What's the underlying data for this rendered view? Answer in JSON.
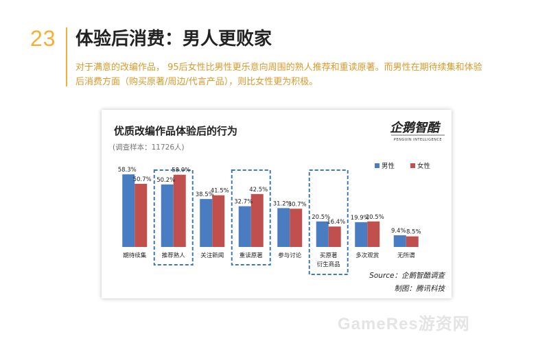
{
  "slide": {
    "number": "23",
    "title": "体验后消费：男人更败家",
    "description": "对于满意的改编作品， 95后女性比男性更乐意向周围的熟人推荐和重读原著。而男性在期待续集和体验后消费方面（购买原著/周边/代言产品），则比女性更为积极。"
  },
  "card": {
    "subtitle": "(调查样本：11726人)",
    "logo": {
      "name": "企鹅智酷",
      "tagline": "PENGUIN INTELLIGENCE"
    },
    "source": "Source：企鹅智酷调查",
    "credit": "制图：腾讯科技"
  },
  "chart_data": {
    "type": "bar",
    "title": "优质改编作品体验后的行为",
    "categories": [
      "期待续集",
      "推荐熟人",
      "关注新闻",
      "重读原著",
      "参与讨论",
      "买原著\n衍生商品",
      "多次观赏",
      "无所谓"
    ],
    "series": [
      {
        "name": "男性",
        "color": "#4a7cc1",
        "values": [
          58.3,
          50.2,
          38.5,
          32.7,
          31.2,
          20.5,
          19.9,
          9.4
        ]
      },
      {
        "name": "女性",
        "color": "#c0504d",
        "values": [
          50.7,
          58.0,
          41.5,
          42.5,
          30.7,
          16.4,
          20.5,
          8.5
        ]
      }
    ],
    "value_labels": [
      [
        "58.3%",
        "50.2%",
        "38.5%",
        "32.7%",
        "31.2%",
        "20.5%",
        "19.9%",
        "9.4%"
      ],
      [
        "50.7%",
        "58.0%",
        "41.5%",
        "42.5%",
        "30.7%",
        "16.4%",
        "20.5%",
        "8.5%"
      ]
    ],
    "highlighted_categories": [
      "推荐熟人",
      "重读原著",
      "买原著\n衍生商品"
    ],
    "highlight_color": "#3a78c0",
    "ylim": [
      0,
      65
    ],
    "grid": false,
    "legend": "top-right"
  },
  "footer": {
    "watermark": "GameRes游资网"
  }
}
